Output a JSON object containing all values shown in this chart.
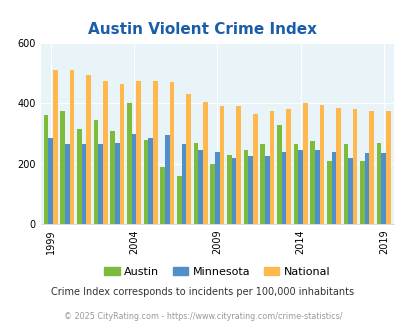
{
  "title": "Austin Violent Crime Index",
  "austin_vals": [
    360,
    375,
    315,
    345,
    310,
    400,
    280,
    190,
    160,
    270,
    200,
    230,
    245,
    265,
    330,
    265,
    275,
    210,
    265,
    210,
    270
  ],
  "minnesota_vals": [
    285,
    265,
    265,
    265,
    270,
    300,
    285,
    295,
    265,
    245,
    240,
    220,
    225,
    225,
    240,
    245,
    245,
    240,
    220,
    235,
    235
  ],
  "national_vals": [
    510,
    510,
    495,
    475,
    465,
    475,
    475,
    470,
    430,
    405,
    390,
    390,
    365,
    375,
    380,
    400,
    395,
    385,
    380,
    375,
    375
  ],
  "color_austin": "#7cbb3c",
  "color_minnesota": "#4f8fcc",
  "color_national": "#ffb84d",
  "bg_color": "#e8f4f8",
  "ylim": [
    0,
    600
  ],
  "yticks": [
    0,
    200,
    400,
    600
  ],
  "xlabel_ticks": [
    1999,
    2004,
    2009,
    2014,
    2019
  ],
  "note": "Crime Index corresponds to incidents per 100,000 inhabitants",
  "footer": "© 2025 CityRating.com - https://www.cityrating.com/crime-statistics/",
  "title_color": "#1a5dab",
  "note_color": "#333333",
  "footer_color": "#999999"
}
